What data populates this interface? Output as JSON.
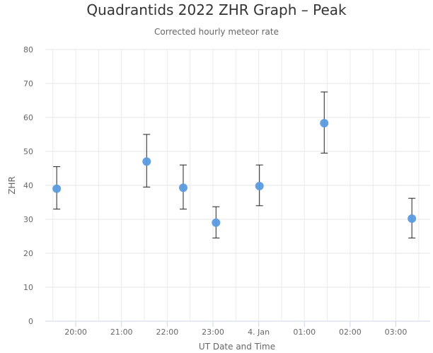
{
  "chart_data": {
    "type": "scatter",
    "title": "Quadrantids 2022 ZHR Graph – Peak",
    "subtitle": "Corrected hourly meteor rate",
    "xlabel": "UT Date and Time",
    "ylabel": "ZHR",
    "ylim": [
      0,
      80
    ],
    "yticks": [
      0,
      10,
      20,
      30,
      40,
      50,
      60,
      70,
      80
    ],
    "xlim": [
      "2022-01-03 19:20",
      "2022-01-04 03:45"
    ],
    "xticks": [
      "2022-01-03 20:00",
      "2022-01-03 21:00",
      "2022-01-03 22:00",
      "2022-01-03 23:00",
      "2022-01-04 00:00",
      "2022-01-04 01:00",
      "2022-01-04 02:00",
      "2022-01-04 03:00"
    ],
    "xtick_labels": [
      "20:00",
      "21:00",
      "22:00",
      "23:00",
      "4. Jan",
      "01:00",
      "02:00",
      "03:00"
    ],
    "grid": true,
    "point_color": "#5b9be0",
    "errorbar_color": "#222222",
    "points": [
      {
        "x": "2022-01-03 19:35",
        "y": 39,
        "low": 33,
        "high": 45.5
      },
      {
        "x": "2022-01-03 21:33",
        "y": 47,
        "low": 39.5,
        "high": 55
      },
      {
        "x": "2022-01-03 22:21",
        "y": 39.3,
        "low": 33,
        "high": 46
      },
      {
        "x": "2022-01-03 23:04",
        "y": 29,
        "low": 24.5,
        "high": 33.7
      },
      {
        "x": "2022-01-04 00:01",
        "y": 39.8,
        "low": 34,
        "high": 46
      },
      {
        "x": "2022-01-04 01:26",
        "y": 58.3,
        "low": 49.5,
        "high": 67.5
      },
      {
        "x": "2022-01-04 03:21",
        "y": 30.2,
        "low": 24.5,
        "high": 36.2
      }
    ]
  }
}
